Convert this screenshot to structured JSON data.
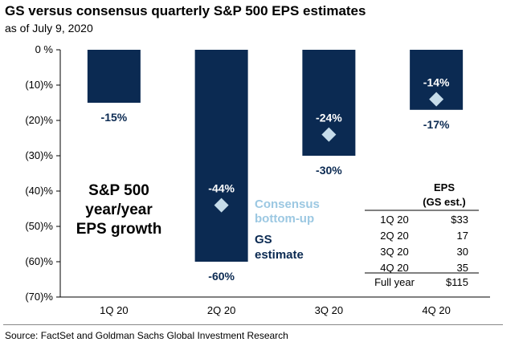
{
  "title": "GS versus consensus quarterly S&P 500 EPS estimates",
  "subtitle": "as of July 9, 2020",
  "source": "Source: FactSet and Goldman Sachs Global Investment Research",
  "colors": {
    "bar": "#0b2a52",
    "consensus": "#c6dcea",
    "consensus_text": "#9cc8e2",
    "gs_text": "#0b2a52"
  },
  "chart_data": {
    "type": "bar",
    "categories": [
      "1Q 20",
      "2Q 20",
      "3Q 20",
      "4Q 20"
    ],
    "series": [
      {
        "name": "GS estimate",
        "values": [
          -15,
          -60,
          -30,
          -17
        ]
      },
      {
        "name": "Consensus bottom-up",
        "values": [
          null,
          -44,
          -24,
          -14
        ]
      }
    ],
    "value_labels": {
      "gs": [
        "-15%",
        "-60%",
        "-30%",
        "-17%"
      ],
      "consensus": [
        "",
        "-44%",
        "-24%",
        "-14%"
      ]
    },
    "ylim": [
      -70,
      0
    ],
    "yticks": [
      0,
      -10,
      -20,
      -30,
      -40,
      -50,
      -60,
      -70
    ],
    "ytick_labels": [
      "0 %",
      "(10)%",
      "(20)%",
      "(30)%",
      "(40)%",
      "(50)%",
      "(60)%",
      "(70)%"
    ],
    "grid": false,
    "side_label": [
      "S&P 500",
      "year/year",
      "EPS growth"
    ],
    "legend": {
      "consensus": [
        "Consensus",
        "bottom-up"
      ],
      "gs": [
        "GS",
        "estimate"
      ]
    },
    "eps_table": {
      "header": [
        "EPS",
        "(GS est.)"
      ],
      "rows": [
        {
          "label": "1Q 20",
          "value": "$33"
        },
        {
          "label": "2Q 20",
          "value": "17"
        },
        {
          "label": "3Q 20",
          "value": "30"
        },
        {
          "label": "4Q 20",
          "value": "35"
        }
      ],
      "total": {
        "label": "Full year",
        "value": "$115"
      }
    }
  }
}
